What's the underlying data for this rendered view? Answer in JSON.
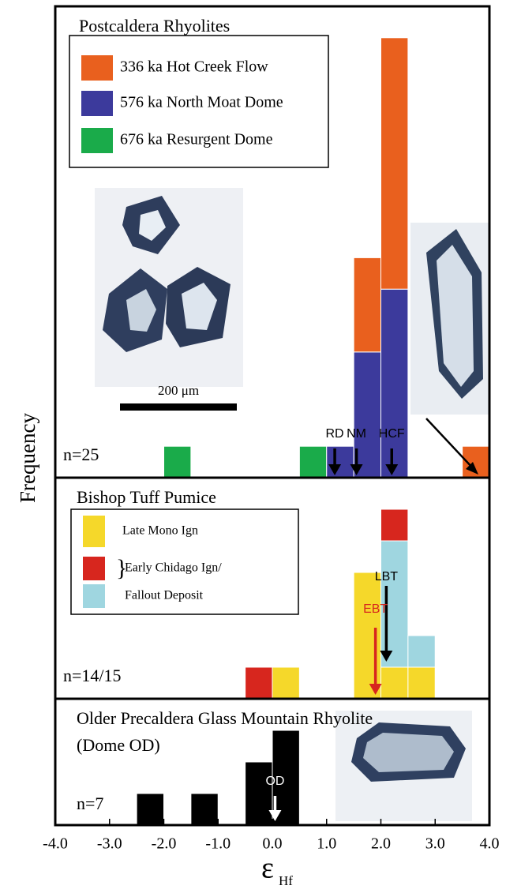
{
  "ylabel": "Frequency",
  "scale_bar": "200 μm",
  "chart_data": [
    {
      "type": "histogram",
      "title": "Postcaldera Rhyolites",
      "note": "n=25",
      "bins": [
        -4.0,
        -3.5,
        -3.0,
        -2.5,
        -2.0,
        -1.5,
        -1.0,
        -0.5,
        0.0,
        0.5,
        1.0,
        1.5,
        2.0,
        2.5,
        3.0,
        3.5,
        4.0
      ],
      "xlim": [
        -4,
        4
      ],
      "ylim": [
        0,
        15
      ],
      "series": [
        {
          "name": "676 ka Resurgent Dome",
          "color": "#1aab4a",
          "values": [
            0,
            0,
            0,
            0,
            1,
            0,
            0,
            0,
            0,
            1,
            0,
            0,
            0,
            0,
            0,
            0
          ]
        },
        {
          "name": "576 ka North Moat Dome",
          "color": "#3c3a9c",
          "values": [
            0,
            0,
            0,
            0,
            0,
            0,
            0,
            0,
            0,
            0,
            1,
            4,
            6,
            0,
            0,
            0
          ]
        },
        {
          "name": "336 ka Hot Creek Flow",
          "color": "#e9601e",
          "values": [
            0,
            0,
            0,
            0,
            0,
            0,
            0,
            0,
            0,
            0,
            0,
            3,
            8,
            0,
            0,
            1
          ]
        }
      ],
      "annotations": [
        {
          "label": "RD",
          "x": 1.15,
          "color": "#000000"
        },
        {
          "label": "NM",
          "x": 1.55,
          "color": "#000000"
        },
        {
          "label": "HCF",
          "x": 2.2,
          "color": "#000000"
        }
      ]
    },
    {
      "type": "histogram",
      "title": "Bishop Tuff Pumice",
      "note": "n=14/15",
      "bins": [
        -4.0,
        -3.5,
        -3.0,
        -2.5,
        -2.0,
        -1.5,
        -1.0,
        -0.5,
        0.0,
        0.5,
        1.0,
        1.5,
        2.0,
        2.5,
        3.0,
        3.5,
        4.0
      ],
      "xlim": [
        -4,
        4
      ],
      "ylim": [
        0,
        7
      ],
      "series": [
        {
          "name": "Late Mono Ign",
          "color": "#f5d82a",
          "values": [
            0,
            0,
            0,
            0,
            0,
            0,
            0,
            0,
            1,
            0,
            0,
            4,
            1,
            1,
            0,
            0
          ]
        },
        {
          "name": "Fallout Deposit",
          "color": "#9fd6e0",
          "values": [
            0,
            0,
            0,
            0,
            0,
            0,
            0,
            0,
            0,
            0,
            0,
            0,
            4,
            1,
            0,
            0
          ]
        },
        {
          "name": "Early Chidago Ign/",
          "color": "#d7261e",
          "values": [
            0,
            0,
            0,
            0,
            0,
            0,
            0,
            1,
            0,
            0,
            0,
            0,
            1,
            0,
            0,
            0
          ]
        }
      ],
      "annotations": [
        {
          "label": "LBT",
          "x": 2.1,
          "color": "#000000"
        },
        {
          "label": "EBT",
          "x": 1.9,
          "color": "#d7261e"
        }
      ]
    },
    {
      "type": "histogram",
      "title": "Older Precaldera Glass Mountain Rhyolite",
      "subtitle": "(Dome OD)",
      "note": "n=7",
      "bins": [
        -4.0,
        -3.5,
        -3.0,
        -2.5,
        -2.0,
        -1.5,
        -1.0,
        -0.5,
        0.0,
        0.5,
        1.0,
        1.5,
        2.0,
        2.5,
        3.0,
        3.5,
        4.0
      ],
      "xlim": [
        -4,
        4
      ],
      "ylim": [
        0,
        4
      ],
      "series": [
        {
          "name": null,
          "color": "#000000",
          "values": [
            0,
            0,
            0,
            1,
            0,
            1,
            0,
            2,
            3,
            0,
            0,
            0,
            0,
            0,
            0,
            0
          ]
        }
      ],
      "annotations": [
        {
          "label": "OD",
          "x": 0.05,
          "color": "#ffffff"
        }
      ],
      "xlabel": "ε",
      "xlabel_subscript": "Hf",
      "xticks": [
        {
          "value": -4,
          "label": "-4.0"
        },
        {
          "value": -3,
          "label": "-3.0"
        },
        {
          "value": -2,
          "label": "-2.0"
        },
        {
          "value": -1,
          "label": "-1.0"
        },
        {
          "value": 0,
          "label": "0.0"
        },
        {
          "value": 1,
          "label": "1.0"
        },
        {
          "value": 2,
          "label": "2.0"
        },
        {
          "value": 3,
          "label": "3.0"
        },
        {
          "value": 4,
          "label": "4.0"
        }
      ]
    }
  ]
}
